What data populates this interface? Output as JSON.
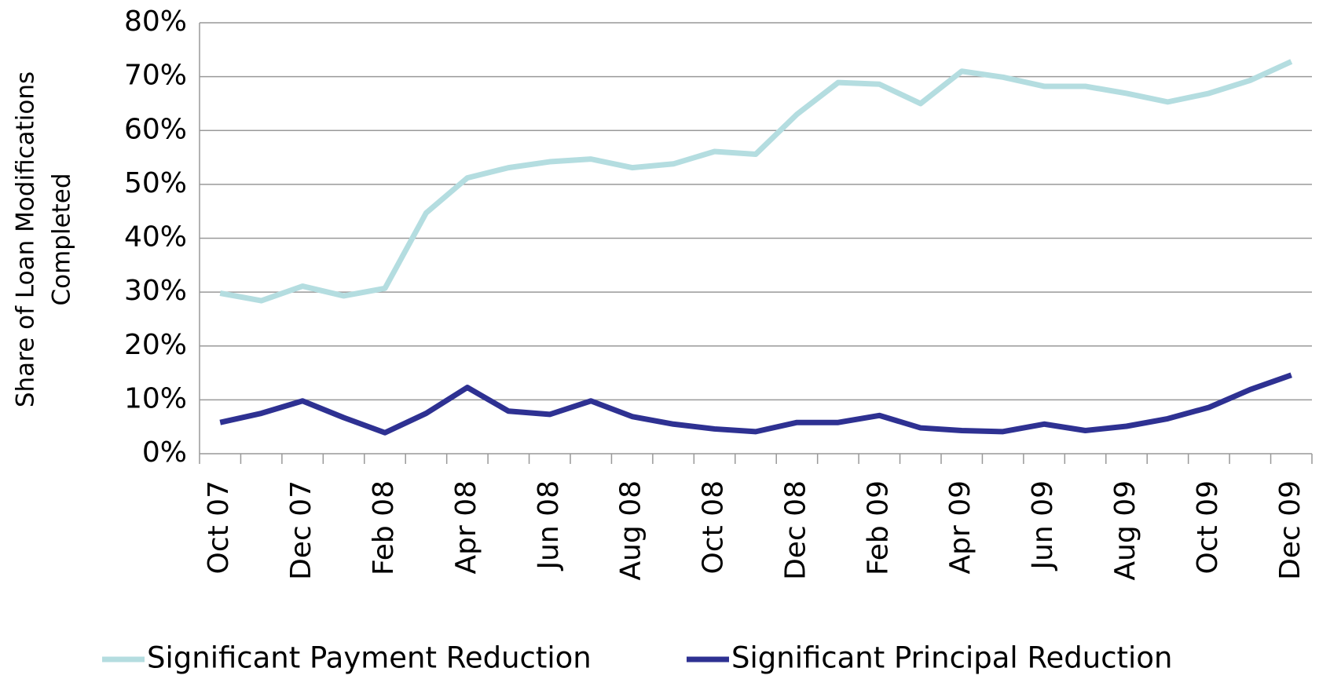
{
  "chart_data": {
    "type": "line",
    "y_label": [
      "Share of Loan Modifications",
      "Completed"
    ],
    "categories": [
      "Oct 07",
      null,
      "Dec 07",
      null,
      "Feb 08",
      null,
      "Apr 08",
      null,
      "Jun 08",
      null,
      "Aug 08",
      null,
      "Oct 08",
      null,
      "Dec 08",
      null,
      "Feb 09",
      null,
      "Apr 09",
      null,
      "Jun 09",
      null,
      "Aug 09",
      null,
      "Oct 09",
      null,
      "Dec 09"
    ],
    "series": [
      {
        "name": "Significant Payment Reduction",
        "color": "#b4dde0",
        "values": [
          29.8,
          28.4,
          31.1,
          29.3,
          30.7,
          44.7,
          51.2,
          53.1,
          54.2,
          54.7,
          53.1,
          53.8,
          56.1,
          55.6,
          63.0,
          68.9,
          68.6,
          65.0,
          71.0,
          69.9,
          68.2,
          68.2,
          66.9,
          65.3,
          66.9,
          69.3,
          72.8
        ]
      },
      {
        "name": "Significant Principal Reduction",
        "color": "#2e3192",
        "values": [
          5.8,
          7.5,
          9.8,
          6.7,
          3.9,
          7.5,
          12.3,
          7.9,
          7.3,
          9.8,
          6.9,
          5.5,
          4.6,
          4.1,
          5.8,
          5.8,
          7.1,
          4.8,
          4.3,
          4.1,
          5.5,
          4.3,
          5.1,
          6.5,
          8.6,
          11.9,
          14.6
        ]
      }
    ],
    "ylim": [
      0,
      80
    ],
    "yticks": [
      {
        "value": 0,
        "label": "0%"
      },
      {
        "value": 10,
        "label": "10%"
      },
      {
        "value": 20,
        "label": "20%"
      },
      {
        "value": 30,
        "label": "30%"
      },
      {
        "value": 40,
        "label": "40%"
      },
      {
        "value": 50,
        "label": "50%"
      },
      {
        "value": 60,
        "label": "60%"
      },
      {
        "value": 70,
        "label": "70%"
      },
      {
        "value": 80,
        "label": "80%"
      }
    ],
    "grid": true,
    "legend": "bottom"
  }
}
